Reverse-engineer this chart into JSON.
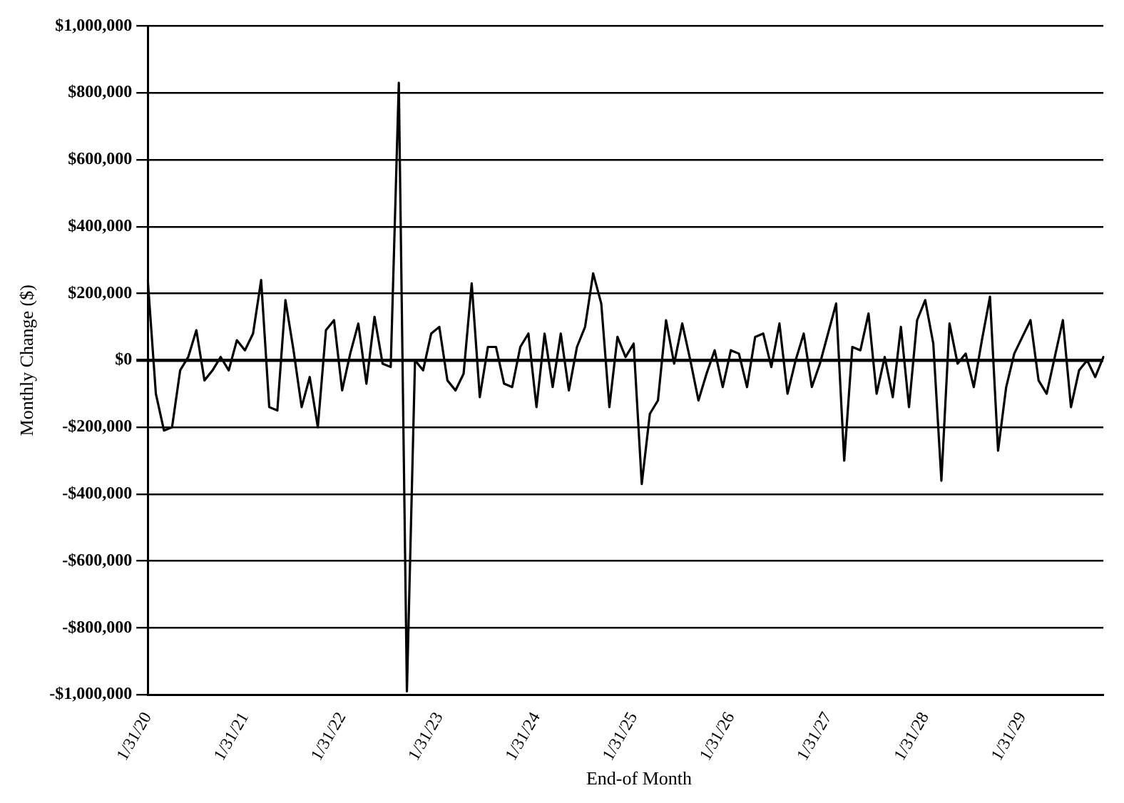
{
  "chart_data": {
    "type": "line",
    "xlabel": "End-of Month",
    "ylabel": "Monthly Change ($)",
    "categories": [
      "1/31/20",
      null,
      null,
      null,
      null,
      null,
      null,
      null,
      null,
      null,
      null,
      null,
      "1/31/21",
      null,
      null,
      null,
      null,
      null,
      null,
      null,
      null,
      null,
      null,
      null,
      "1/31/22",
      null,
      null,
      null,
      null,
      null,
      null,
      null,
      null,
      null,
      null,
      null,
      "1/31/23",
      null,
      null,
      null,
      null,
      null,
      null,
      null,
      null,
      null,
      null,
      null,
      "1/31/24",
      null,
      null,
      null,
      null,
      null,
      null,
      null,
      null,
      null,
      null,
      null,
      "1/31/25",
      null,
      null,
      null,
      null,
      null,
      null,
      null,
      null,
      null,
      null,
      null,
      "1/31/26",
      null,
      null,
      null,
      null,
      null,
      null,
      null,
      null,
      null,
      null,
      null,
      "1/31/27",
      null,
      null,
      null,
      null,
      null,
      null,
      null,
      null,
      null,
      null,
      null,
      "1/31/28",
      null,
      null,
      null,
      null,
      null,
      null,
      null,
      null,
      null,
      null,
      null,
      "1/31/29",
      null,
      null,
      null,
      null,
      null,
      null,
      null,
      null,
      null,
      null
    ],
    "values": [
      240000,
      -100000,
      -210000,
      -200000,
      -30000,
      10000,
      90000,
      -60000,
      -30000,
      10000,
      -30000,
      60000,
      30000,
      80000,
      240000,
      -140000,
      -150000,
      180000,
      30000,
      -140000,
      -50000,
      -200000,
      90000,
      120000,
      -90000,
      20000,
      110000,
      -70000,
      130000,
      -10000,
      -20000,
      830000,
      -990000,
      0,
      -30000,
      80000,
      100000,
      -60000,
      -90000,
      -40000,
      230000,
      -110000,
      40000,
      40000,
      -70000,
      -80000,
      40000,
      80000,
      -140000,
      80000,
      -80000,
      80000,
      -90000,
      40000,
      100000,
      260000,
      170000,
      -140000,
      70000,
      10000,
      50000,
      -370000,
      -160000,
      -120000,
      120000,
      -10000,
      110000,
      0,
      -120000,
      -40000,
      30000,
      -80000,
      30000,
      20000,
      -80000,
      70000,
      80000,
      -20000,
      110000,
      -100000,
      0,
      80000,
      -80000,
      -10000,
      80000,
      170000,
      -300000,
      40000,
      30000,
      140000,
      -100000,
      10000,
      -110000,
      100000,
      -140000,
      120000,
      180000,
      50000,
      -360000,
      110000,
      -10000,
      20000,
      -80000,
      60000,
      190000,
      -270000,
      -80000,
      20000,
      70000,
      120000,
      -60000,
      -100000,
      10000,
      120000,
      -140000,
      -30000,
      0,
      -50000,
      10000
    ],
    "color": "#000000",
    "marker": "none",
    "legend": false,
    "grid": "y",
    "ylim": [
      -1000000,
      1000000
    ],
    "yticks": [
      {
        "value": -1000000,
        "label": "-$1,000,000"
      },
      {
        "value": -800000,
        "label": "-$800,000"
      },
      {
        "value": -600000,
        "label": "-$600,000"
      },
      {
        "value": -400000,
        "label": "-$400,000"
      },
      {
        "value": -200000,
        "label": "-$200,000"
      },
      {
        "value": 0,
        "label": "$0"
      },
      {
        "value": 200000,
        "label": "$200,000"
      },
      {
        "value": 400000,
        "label": "$400,000"
      },
      {
        "value": 600000,
        "label": "$600,000"
      },
      {
        "value": 800000,
        "label": "$800,000"
      },
      {
        "value": 1000000,
        "label": "$1,000,000"
      }
    ]
  }
}
